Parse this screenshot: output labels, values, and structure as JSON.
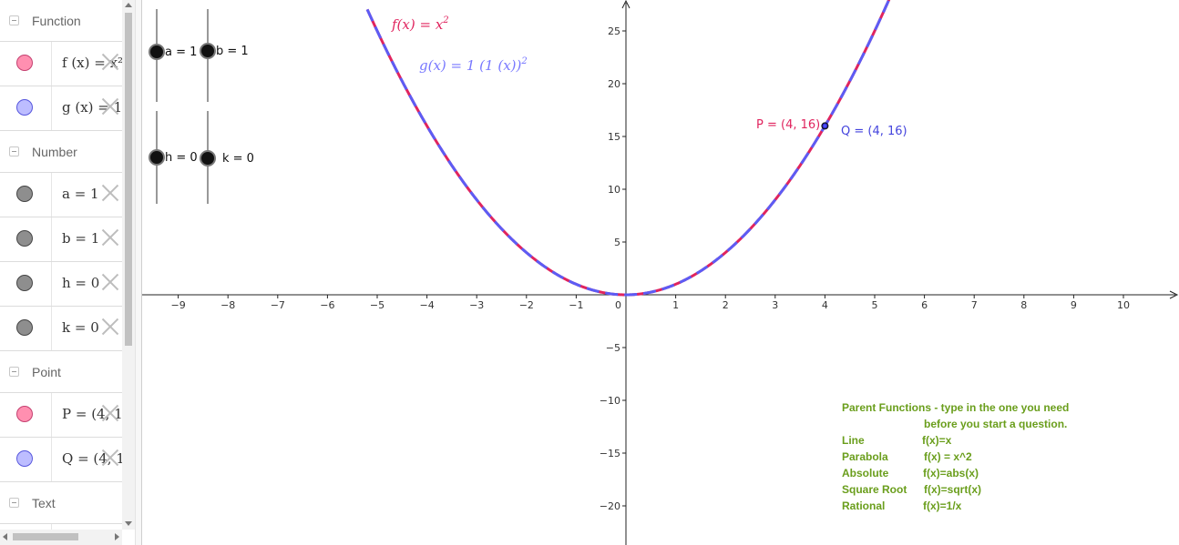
{
  "colors": {
    "f_curve": "#e0245e",
    "g_curve": "#5555ff",
    "pink_marble": "#ff88aa",
    "blue_marble": "#b8b8ff",
    "gray_marble": "#8c8c8c",
    "parent_text": "#6a9e1c",
    "P_label": "#e0245e",
    "Q_label": "#4444dd"
  },
  "sidebar": {
    "categories": {
      "function": "Function",
      "number": "Number",
      "point": "Point",
      "text": "Text"
    },
    "rows": {
      "f": "f (x) = x²",
      "g": "g (x) = 1",
      "a": "a = 1",
      "b": "b = 1",
      "h": "h = 0",
      "k": "k = 0",
      "P": "P = (4, 1",
      "Q": "Q = (4, 1"
    }
  },
  "sliders": {
    "a": "a = 1",
    "b": "b = 1",
    "h": "h = 0",
    "k": "k = 0"
  },
  "graph": {
    "x_ticks": [
      "-9",
      "-8",
      "-7",
      "-6",
      "-5",
      "-4",
      "-3",
      "-2",
      "-1",
      "1",
      "2",
      "3",
      "4",
      "5",
      "6",
      "7",
      "8",
      "9",
      "10"
    ],
    "y_ticks": [
      "25",
      "20",
      "15",
      "10",
      "5",
      "-5",
      "-10",
      "-15",
      "-20"
    ],
    "origin": "0",
    "f_label": "f(x)  =  x",
    "f_exp": "2",
    "g_label": "g(x)  =  1  (1  (x))",
    "g_exp": "2",
    "point_P": "P = (4, 16)",
    "point_Q": "Q = (4, 16)"
  },
  "parent_functions": {
    "title": "Parent Functions - type in the one you need",
    "subtitle": "before you start a question.",
    "items": [
      {
        "name": "Line",
        "formula": "f(x)=x"
      },
      {
        "name": "Parabola",
        "formula": "f(x) = x^2"
      },
      {
        "name": "Absolute",
        "formula": "f(x)=abs(x)"
      },
      {
        "name": "Square Root",
        "formula": "f(x)=sqrt(x)"
      },
      {
        "name": "Rational",
        "formula": "f(x)=1/x"
      }
    ]
  },
  "chart_data": {
    "type": "line",
    "title": "",
    "xlim": [
      -9.7,
      11.1
    ],
    "ylim": [
      -23.3,
      28.1
    ],
    "grid": false,
    "series": [
      {
        "name": "f(x) = x^2",
        "function": "x^2",
        "style": "solid",
        "color": "#e0245e"
      },
      {
        "name": "g(x) = 1 (1 (x))^2",
        "function": "x^2",
        "style": "dashed",
        "color": "#5555ff"
      }
    ],
    "points": [
      {
        "name": "P",
        "x": 4,
        "y": 16
      },
      {
        "name": "Q",
        "x": 4,
        "y": 16
      }
    ]
  }
}
